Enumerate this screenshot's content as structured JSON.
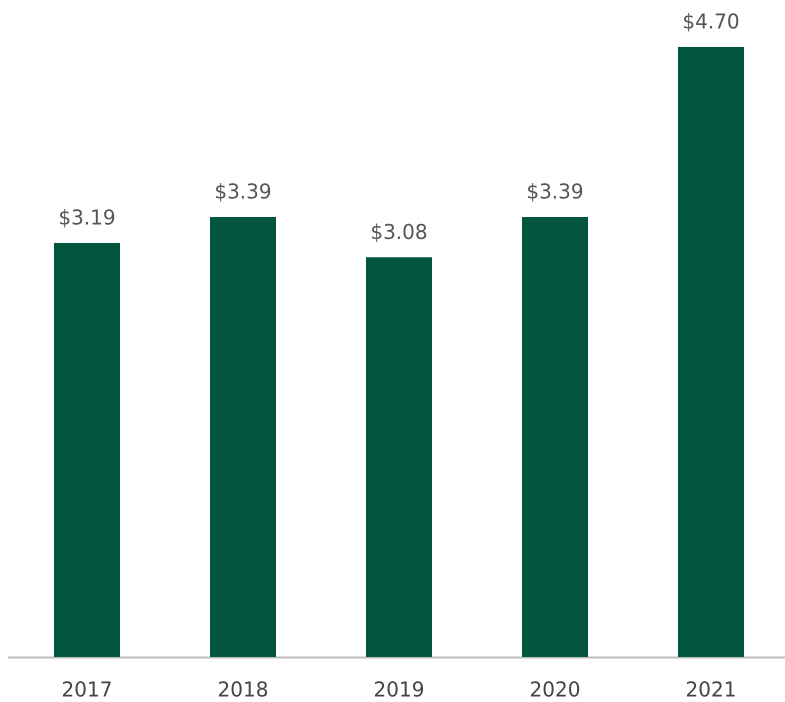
{
  "chart_data": {
    "type": "bar",
    "categories": [
      "2017",
      "2018",
      "2019",
      "2020",
      "2021"
    ],
    "values": [
      3.19,
      3.39,
      3.08,
      3.39,
      4.7
    ],
    "value_labels": [
      "$3.19",
      "$3.39",
      "$3.08",
      "$3.39",
      "$4.70"
    ],
    "color": "#02553f"
  }
}
